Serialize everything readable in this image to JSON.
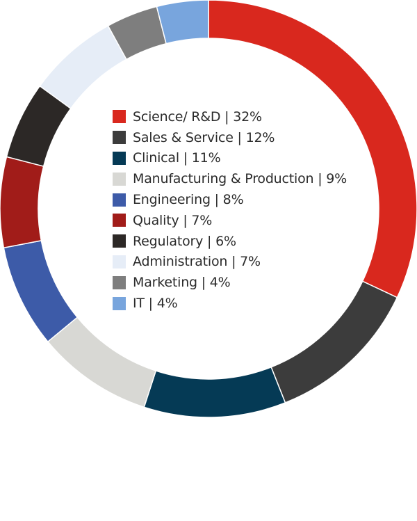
{
  "chart_data": {
    "type": "pie",
    "variant": "donut",
    "title": "",
    "start_angle": "top (12 o'clock)",
    "direction": "clockwise",
    "legend_position": "center",
    "slices": [
      {
        "name": "Science/ R&D",
        "value": 32,
        "label": "Science/ R&D | 32%",
        "color": "#d9281e"
      },
      {
        "name": "Sales & Service",
        "value": 12,
        "label": "Sales & Service | 12%",
        "color": "#3c3c3c"
      },
      {
        "name": "Clinical",
        "value": 11,
        "label": "Clinical | 11%",
        "color": "#053a55"
      },
      {
        "name": "Manufacturing & Production",
        "value": 9,
        "label": "Manufacturing & Production | 9%",
        "color": "#d8d8d4"
      },
      {
        "name": "Engineering",
        "value": 8,
        "label": "Engineering | 8%",
        "color": "#3d5ba8"
      },
      {
        "name": "Quality",
        "value": 7,
        "label": "Quality | 7%",
        "color": "#a11c19"
      },
      {
        "name": "Regulatory",
        "value": 6,
        "label": "Regulatory | 6%",
        "color": "#2c2826"
      },
      {
        "name": "Administration",
        "value": 7,
        "label": "Administration | 7%",
        "color": "#e6edf7"
      },
      {
        "name": "Marketing",
        "value": 4,
        "label": "Marketing | 4%",
        "color": "#7e7e7e"
      },
      {
        "name": "IT",
        "value": 4,
        "label": "IT | 4%",
        "color": "#78a5dd"
      }
    ]
  }
}
